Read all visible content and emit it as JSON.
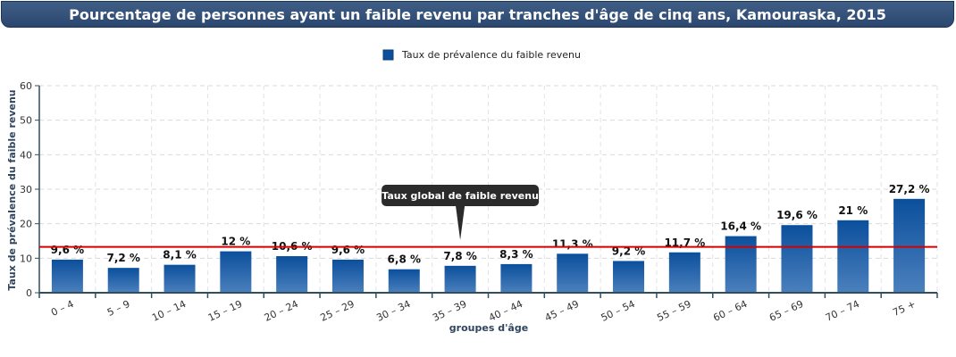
{
  "title": "Pourcentage de personnes ayant un faible revenu par tranches d'âge de cinq ans, Kamouraska, 2015",
  "colors": {
    "bar_top": "#0b4f9c",
    "bar_bottom": "#4b80bd",
    "reference_line": "#d40000",
    "title_bg": "#33527a",
    "axis": "#2f4f5f"
  },
  "chart_data": {
    "type": "bar",
    "legend": [
      "Taux de prévalence du faible revenu"
    ],
    "legend_position": "top-center",
    "xlabel": "groupes d'âge",
    "ylabel": "Taux de prévalence du faible revenu",
    "ylim": [
      0,
      60
    ],
    "yticks": [
      0,
      10,
      20,
      30,
      40,
      50,
      60
    ],
    "grid": true,
    "categories": [
      "0 – 4",
      "5 – 9",
      "10 – 14",
      "15 – 19",
      "20 – 24",
      "25 – 29",
      "30 – 34",
      "35 – 39",
      "40 – 44",
      "45 – 49",
      "50 – 54",
      "55 – 59",
      "60 – 64",
      "65 – 69",
      "70 – 74",
      "75 +"
    ],
    "series": [
      {
        "name": "Taux de prévalence du faible revenu",
        "values": [
          9.6,
          7.2,
          8.1,
          12,
          10.6,
          9.6,
          6.8,
          7.8,
          8.3,
          11.3,
          9.2,
          11.7,
          16.4,
          19.6,
          21,
          27.2
        ],
        "labels": [
          "9,6 %",
          "7,2 %",
          "8,1 %",
          "12 %",
          "10,6 %",
          "9,6 %",
          "6,8 %",
          "7,8 %",
          "8,3 %",
          "11,3 %",
          "9,2 %",
          "11,7 %",
          "16,4 %",
          "19,6 %",
          "21 %",
          "27,2 %"
        ]
      }
    ],
    "reference_line": {
      "value": 13.3,
      "label": "Taux global de faible revenu",
      "at_category": "35 – 39"
    }
  }
}
